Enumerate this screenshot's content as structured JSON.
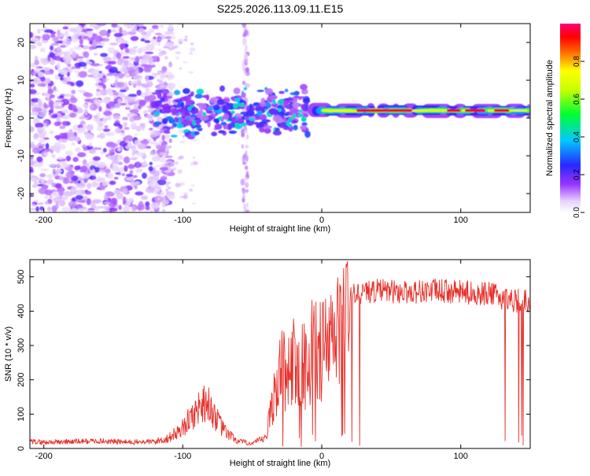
{
  "chart_data": [
    {
      "type": "heatmap",
      "title": "S225.2026.113.09.11.E15",
      "xlabel": "Height of straight line (km)",
      "ylabel": "Frequency (Hz)",
      "xlim": [
        -210,
        150
      ],
      "ylim": [
        -25,
        25
      ],
      "xticks": [
        -200,
        -100,
        0,
        100
      ],
      "yticks": [
        -20,
        -10,
        0,
        10,
        20
      ],
      "grid": false,
      "colorbar": {
        "label": "Normalized spectral amplitude",
        "range": [
          0,
          1
        ],
        "ticks": [
          0.0,
          0.2,
          0.4,
          0.6,
          0.8
        ],
        "tick_labels": [
          "0.0",
          "0.2",
          "0.4",
          "0.6",
          "0.8"
        ]
      },
      "features": [
        {
          "name": "noise-region",
          "x_range": [
            -210,
            -120
          ],
          "freq_range": [
            -25,
            25
          ],
          "amplitude": 0.1
        },
        {
          "name": "scattered-blobs",
          "x_range": [
            -120,
            -10
          ],
          "freq_range": [
            -6,
            8
          ],
          "amplitude": 0.3
        },
        {
          "name": "tone-band",
          "x_range": [
            -10,
            150
          ],
          "freq_center": 2,
          "amplitude": 0.95
        }
      ]
    },
    {
      "type": "line",
      "xlabel": "Height of straight line (km)",
      "ylabel": "SNR (10 * v/v)",
      "xlim": [
        -210,
        150
      ],
      "ylim": [
        0,
        550
      ],
      "xticks": [
        -200,
        -100,
        0,
        100
      ],
      "yticks": [
        0,
        100,
        200,
        300,
        400,
        500
      ],
      "grid": false,
      "series": [
        {
          "name": "SNR",
          "color": "#e8302a",
          "x": [
            -210,
            -200,
            -180,
            -160,
            -140,
            -120,
            -110,
            -100,
            -90,
            -85,
            -80,
            -75,
            -70,
            -60,
            -50,
            -40,
            -35,
            -30,
            -25,
            -20,
            -15,
            -10,
            -5,
            0,
            5,
            10,
            15,
            20,
            25,
            30,
            40,
            60,
            80,
            100,
            120,
            130,
            140,
            150
          ],
          "y": [
            20,
            18,
            20,
            22,
            18,
            20,
            30,
            60,
            110,
            140,
            120,
            80,
            50,
            20,
            15,
            30,
            150,
            220,
            240,
            250,
            230,
            260,
            300,
            280,
            300,
            320,
            380,
            440,
            450,
            455,
            460,
            455,
            460,
            455,
            450,
            440,
            430,
            430
          ]
        }
      ]
    }
  ]
}
